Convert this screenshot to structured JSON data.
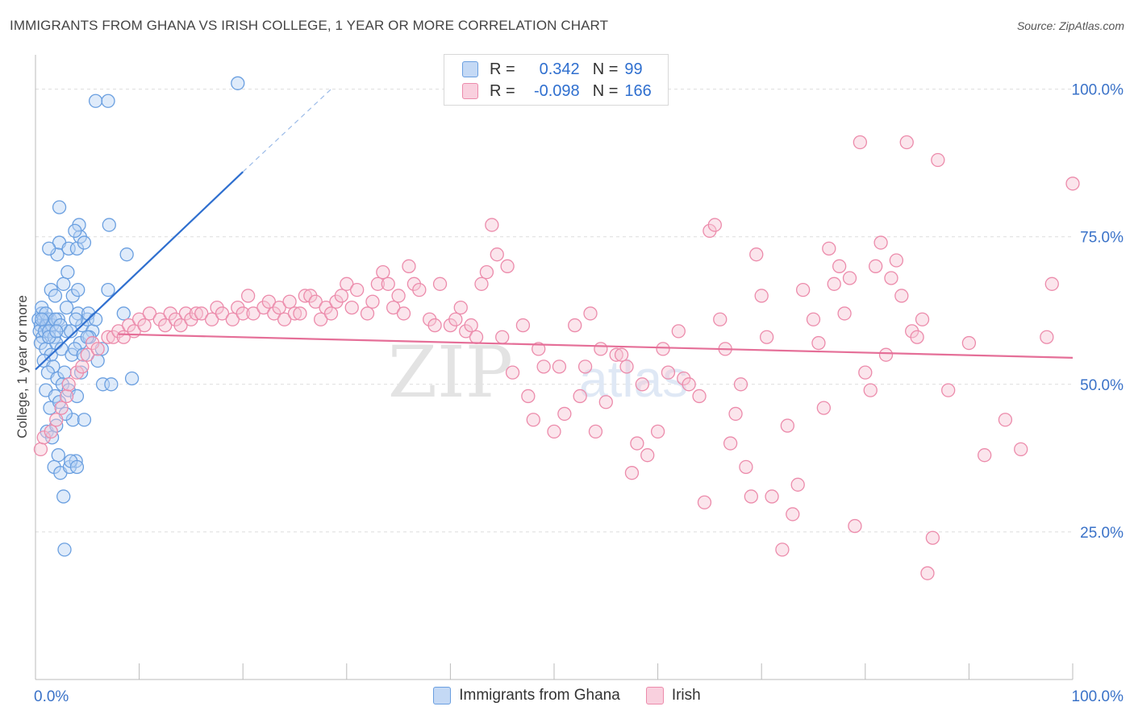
{
  "title": "IMMIGRANTS FROM GHANA VS IRISH COLLEGE, 1 YEAR OR MORE CORRELATION CHART",
  "source": "Source: ZipAtlas.com",
  "colors": {
    "blue": "#6a9fe0",
    "blue_fill": "#b9d2f3",
    "blue_line": "#2f6fcf",
    "pink": "#ec8bab",
    "pink_fill": "#f7c5d5",
    "pink_line": "#e56f98",
    "axis_text": "#3a72c8",
    "grid": "#dddddd"
  },
  "legend": {
    "rows": [
      {
        "r_label": "R =",
        "r_value": "0.342",
        "n_label": "N =",
        "n_value": "99"
      },
      {
        "r_label": "R =",
        "r_value": "-0.098",
        "n_label": "N =",
        "n_value": "166"
      }
    ]
  },
  "bottom_legend": [
    "Immigrants from Ghana",
    "Irish"
  ],
  "watermark": {
    "zip": "ZIP",
    "atlas": "atlas"
  },
  "chart_data": {
    "type": "scatter",
    "title": "IMMIGRANTS FROM GHANA VS IRISH COLLEGE, 1 YEAR OR MORE CORRELATION CHART",
    "xlabel": "",
    "ylabel": "College, 1 year or more",
    "xlim": [
      0,
      100
    ],
    "ylim": [
      0,
      105
    ],
    "x_tick_labels": [
      {
        "value": 0,
        "label": "0.0%"
      },
      {
        "value": 100,
        "label": "100.0%"
      }
    ],
    "y_tick_labels": [
      {
        "value": 25,
        "label": "25.0%"
      },
      {
        "value": 50,
        "label": "50.0%"
      },
      {
        "value": 75,
        "label": "75.0%"
      },
      {
        "value": 100,
        "label": "100.0%"
      }
    ],
    "series": [
      {
        "name": "Immigrants from Ghana",
        "r": 0.342,
        "n": 99,
        "trend": {
          "x": [
            0,
            20
          ],
          "y": [
            52.5,
            86
          ],
          "dash_to": [
            28.5,
            100
          ]
        },
        "points": [
          [
            0.3,
            61
          ],
          [
            0.5,
            60
          ],
          [
            0.6,
            62
          ],
          [
            0.8,
            61
          ],
          [
            1,
            60
          ],
          [
            1.2,
            61
          ],
          [
            0.4,
            59
          ],
          [
            0.7,
            58
          ],
          [
            1.1,
            60
          ],
          [
            1.4,
            61
          ],
          [
            0.9,
            59
          ],
          [
            1.6,
            60
          ],
          [
            0.5,
            57
          ],
          [
            1.3,
            59
          ],
          [
            1.8,
            58
          ],
          [
            2.2,
            61
          ],
          [
            0.6,
            63
          ],
          [
            1.0,
            56
          ],
          [
            1.5,
            55
          ],
          [
            2.0,
            57
          ],
          [
            0.8,
            54
          ],
          [
            1.7,
            53
          ],
          [
            2.5,
            56
          ],
          [
            3.0,
            59
          ],
          [
            1.2,
            52
          ],
          [
            2.1,
            51
          ],
          [
            2.8,
            52
          ],
          [
            3.5,
            55
          ],
          [
            1.0,
            49
          ],
          [
            1.9,
            48
          ],
          [
            2.6,
            50
          ],
          [
            3.2,
            49
          ],
          [
            1.4,
            46
          ],
          [
            2.3,
            47
          ],
          [
            3.6,
            44
          ],
          [
            4.7,
            44
          ],
          [
            1.1,
            42
          ],
          [
            2.0,
            43
          ],
          [
            2.9,
            45
          ],
          [
            4.0,
            48
          ],
          [
            1.6,
            41
          ],
          [
            2.2,
            38
          ],
          [
            1.8,
            36
          ],
          [
            2.4,
            35
          ],
          [
            3.3,
            36
          ],
          [
            3.9,
            37
          ],
          [
            3.4,
            37
          ],
          [
            2.7,
            31
          ],
          [
            2.8,
            22
          ],
          [
            4.0,
            36
          ],
          [
            4.1,
            62
          ],
          [
            4.5,
            60
          ],
          [
            5.0,
            61
          ],
          [
            5.5,
            59
          ],
          [
            4.3,
            57
          ],
          [
            5.2,
            58
          ],
          [
            3.8,
            56
          ],
          [
            4.6,
            55
          ],
          [
            6.0,
            54
          ],
          [
            6.5,
            50
          ],
          [
            7.3,
            50
          ],
          [
            9.3,
            51
          ],
          [
            3.0,
            63
          ],
          [
            3.6,
            65
          ],
          [
            2.7,
            67
          ],
          [
            3.1,
            69
          ],
          [
            2.1,
            72
          ],
          [
            2.3,
            74
          ],
          [
            3.2,
            73
          ],
          [
            4.0,
            73
          ],
          [
            4.3,
            75
          ],
          [
            4.7,
            74
          ],
          [
            1.3,
            73
          ],
          [
            1.5,
            66
          ],
          [
            1.9,
            65
          ],
          [
            3.9,
            61
          ],
          [
            4.1,
            66
          ],
          [
            5.1,
            62
          ],
          [
            5.8,
            61
          ],
          [
            7.0,
            66
          ],
          [
            8.5,
            62
          ],
          [
            8.8,
            72
          ],
          [
            7.1,
            77
          ],
          [
            4.2,
            77
          ],
          [
            3.8,
            76
          ],
          [
            2.3,
            80
          ],
          [
            5.8,
            98
          ],
          [
            7.0,
            98
          ],
          [
            19.5,
            101
          ],
          [
            1.0,
            62
          ],
          [
            0.6,
            61
          ],
          [
            1.9,
            61
          ],
          [
            1.3,
            58
          ],
          [
            2.4,
            60
          ],
          [
            3.4,
            59
          ],
          [
            5.0,
            58
          ],
          [
            6.4,
            56
          ],
          [
            4.4,
            52
          ],
          [
            2.0,
            59
          ]
        ]
      },
      {
        "name": "Irish",
        "r": -0.098,
        "n": 166,
        "trend": {
          "x": [
            8,
            100
          ],
          "y": [
            58.5,
            54.5
          ]
        },
        "points": [
          [
            0.5,
            39
          ],
          [
            0.8,
            41
          ],
          [
            1.5,
            42
          ],
          [
            2.0,
            44
          ],
          [
            2.5,
            46
          ],
          [
            3.0,
            48
          ],
          [
            3.2,
            50
          ],
          [
            4.0,
            52
          ],
          [
            4.5,
            53
          ],
          [
            5.0,
            55
          ],
          [
            5.5,
            57
          ],
          [
            6.0,
            56
          ],
          [
            7.0,
            58
          ],
          [
            7.5,
            58
          ],
          [
            8.0,
            59
          ],
          [
            8.5,
            58
          ],
          [
            9.0,
            60
          ],
          [
            9.5,
            59
          ],
          [
            10.0,
            61
          ],
          [
            10.5,
            60
          ],
          [
            11.0,
            62
          ],
          [
            12.0,
            61
          ],
          [
            12.5,
            60
          ],
          [
            13.0,
            62
          ],
          [
            13.5,
            61
          ],
          [
            14.0,
            60
          ],
          [
            14.5,
            62
          ],
          [
            15.0,
            61
          ],
          [
            15.5,
            62
          ],
          [
            16.0,
            62
          ],
          [
            17.0,
            61
          ],
          [
            17.5,
            63
          ],
          [
            18.0,
            62
          ],
          [
            19.0,
            61
          ],
          [
            19.5,
            63
          ],
          [
            20.0,
            62
          ],
          [
            20.5,
            65
          ],
          [
            21.0,
            62
          ],
          [
            22.0,
            63
          ],
          [
            22.5,
            64
          ],
          [
            23.0,
            62
          ],
          [
            23.5,
            63
          ],
          [
            24.0,
            61
          ],
          [
            24.5,
            64
          ],
          [
            25.0,
            62
          ],
          [
            25.5,
            62
          ],
          [
            26.0,
            65
          ],
          [
            26.5,
            65
          ],
          [
            27.0,
            64
          ],
          [
            27.5,
            61
          ],
          [
            28.0,
            63
          ],
          [
            28.5,
            62
          ],
          [
            29.0,
            64
          ],
          [
            29.5,
            65
          ],
          [
            30.0,
            67
          ],
          [
            30.5,
            63
          ],
          [
            31.0,
            66
          ],
          [
            32.0,
            62
          ],
          [
            32.5,
            64
          ],
          [
            33.0,
            67
          ],
          [
            33.5,
            69
          ],
          [
            34.0,
            67
          ],
          [
            34.5,
            63
          ],
          [
            35.0,
            65
          ],
          [
            35.5,
            62
          ],
          [
            36.0,
            70
          ],
          [
            36.5,
            67
          ],
          [
            37.0,
            66
          ],
          [
            38.0,
            61
          ],
          [
            38.5,
            60
          ],
          [
            39.0,
            67
          ],
          [
            40.0,
            60
          ],
          [
            40.5,
            61
          ],
          [
            41.0,
            63
          ],
          [
            41.5,
            59
          ],
          [
            42.0,
            60
          ],
          [
            42.5,
            58
          ],
          [
            43.0,
            67
          ],
          [
            43.5,
            69
          ],
          [
            44.0,
            77
          ],
          [
            44.5,
            72
          ],
          [
            45.0,
            58
          ],
          [
            45.5,
            70
          ],
          [
            46.0,
            52
          ],
          [
            47.0,
            60
          ],
          [
            47.5,
            48
          ],
          [
            48.0,
            44
          ],
          [
            48.5,
            56
          ],
          [
            49.0,
            53
          ],
          [
            50.0,
            42
          ],
          [
            50.5,
            53
          ],
          [
            51.0,
            45
          ],
          [
            52.0,
            60
          ],
          [
            52.5,
            48
          ],
          [
            53.0,
            53
          ],
          [
            53.5,
            62
          ],
          [
            54.0,
            42
          ],
          [
            54.5,
            56
          ],
          [
            55.0,
            47
          ],
          [
            56.0,
            55
          ],
          [
            56.5,
            55
          ],
          [
            57.0,
            53
          ],
          [
            57.5,
            35
          ],
          [
            58.0,
            40
          ],
          [
            58.5,
            50
          ],
          [
            59.0,
            38
          ],
          [
            60.0,
            42
          ],
          [
            60.5,
            56
          ],
          [
            61.0,
            52
          ],
          [
            62.0,
            59
          ],
          [
            62.5,
            51
          ],
          [
            63.0,
            50
          ],
          [
            64.0,
            48
          ],
          [
            64.5,
            30
          ],
          [
            65.0,
            76
          ],
          [
            65.5,
            77
          ],
          [
            66.0,
            61
          ],
          [
            66.5,
            56
          ],
          [
            67.0,
            40
          ],
          [
            67.5,
            45
          ],
          [
            68.0,
            50
          ],
          [
            68.5,
            36
          ],
          [
            69.0,
            31
          ],
          [
            69.5,
            72
          ],
          [
            70.0,
            65
          ],
          [
            70.5,
            58
          ],
          [
            71.0,
            31
          ],
          [
            72.0,
            22
          ],
          [
            72.5,
            43
          ],
          [
            73.0,
            28
          ],
          [
            73.5,
            33
          ],
          [
            74.0,
            66
          ],
          [
            75.0,
            61
          ],
          [
            75.5,
            57
          ],
          [
            76.0,
            46
          ],
          [
            76.5,
            73
          ],
          [
            77.0,
            67
          ],
          [
            77.5,
            70
          ],
          [
            78.0,
            62
          ],
          [
            78.5,
            68
          ],
          [
            79.0,
            26
          ],
          [
            79.5,
            91
          ],
          [
            80.0,
            52
          ],
          [
            80.5,
            49
          ],
          [
            81.0,
            70
          ],
          [
            81.5,
            74
          ],
          [
            82.0,
            55
          ],
          [
            82.5,
            68
          ],
          [
            83.0,
            71
          ],
          [
            83.5,
            65
          ],
          [
            84.0,
            91
          ],
          [
            84.5,
            59
          ],
          [
            85.0,
            58
          ],
          [
            85.5,
            61
          ],
          [
            86.0,
            18
          ],
          [
            86.5,
            24
          ],
          [
            87.0,
            88
          ],
          [
            88.0,
            49
          ],
          [
            90.0,
            57
          ],
          [
            91.5,
            38
          ],
          [
            93.5,
            44
          ],
          [
            95.0,
            39
          ],
          [
            97.5,
            58
          ],
          [
            98.0,
            67
          ],
          [
            100.0,
            84
          ]
        ]
      }
    ]
  }
}
